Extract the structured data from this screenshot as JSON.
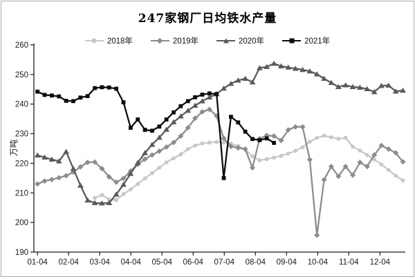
{
  "chart_data": {
    "type": "line",
    "title": "247家钢厂日均铁水产量",
    "ylabel": "万吨",
    "ylim": [
      190,
      260
    ],
    "yticks": [
      190,
      200,
      210,
      220,
      230,
      240,
      250,
      260
    ],
    "x_tick_labels": [
      "01-04",
      "02-04",
      "03-04",
      "04-04",
      "05-04",
      "06-04",
      "07-04",
      "08-04",
      "09-04",
      "10-04",
      "11-04",
      "12-04"
    ],
    "x_unit": "week-of-year, points are weekly values",
    "grid": "off",
    "legend_position": "top-center",
    "axis_color": "#1a1a1a",
    "text_color": "#1a1a1a",
    "frame_color": "#a9a9a9",
    "series": [
      {
        "name": "2018年",
        "marker": "circle",
        "color": "#c8c8c8",
        "start_week": 8,
        "values": [
          208.3,
          209.3,
          207.8,
          207.6,
          209.6,
          211.2,
          213.0,
          214.9,
          216.7,
          218.5,
          220.3,
          221.7,
          223.0,
          224.8,
          226.0,
          226.7,
          227.0,
          227.2,
          227.0,
          226.6,
          225.8,
          224.6,
          222.4,
          221.0,
          221.4,
          221.9,
          222.5,
          223.3,
          224.2,
          225.4,
          227.3,
          228.6,
          229.3,
          228.8,
          228.3,
          228.6,
          225.6,
          224.3,
          222.8,
          221.3,
          219.6,
          217.7,
          215.8,
          214.2
        ]
      },
      {
        "name": "2019年",
        "marker": "diamond",
        "color": "#8c8c8c",
        "start_week": 0,
        "values": [
          213.0,
          214.0,
          214.5,
          215.1,
          215.8,
          217.0,
          218.8,
          220.3,
          220.4,
          218.2,
          215.4,
          213.6,
          214.9,
          217.4,
          219.6,
          221.4,
          222.8,
          224.1,
          225.5,
          227.0,
          229.2,
          232.0,
          235.2,
          237.4,
          238.2,
          236.0,
          228.4,
          225.7,
          225.2,
          224.8,
          218.5,
          228.3,
          229.4,
          229.2,
          227.7,
          231.3,
          232.3,
          232.3,
          221.2,
          195.7,
          214.4,
          218.9,
          215.6,
          218.9,
          216.0,
          220.3,
          218.9,
          222.8,
          226.0,
          224.8,
          223.5,
          220.5
        ]
      },
      {
        "name": "2020年",
        "marker": "triangle",
        "color": "#5a5a5a",
        "start_week": 0,
        "values": [
          222.7,
          222.0,
          221.3,
          220.7,
          223.9,
          218.2,
          212.5,
          207.5,
          206.6,
          206.5,
          206.6,
          209.5,
          212.8,
          216.5,
          220.2,
          223.5,
          226.3,
          228.7,
          231.4,
          233.9,
          235.9,
          237.8,
          239.5,
          241.0,
          242.3,
          243.4,
          245.3,
          246.9,
          248.0,
          248.6,
          247.4,
          252.2,
          252.6,
          253.7,
          252.8,
          252.4,
          252.0,
          251.6,
          251.1,
          250.1,
          248.6,
          247.2,
          245.8,
          246.4,
          245.8,
          245.6,
          245.1,
          244.1,
          246.2,
          246.3,
          244.3,
          244.6
        ]
      },
      {
        "name": "2021年",
        "marker": "square",
        "color": "#0d0d0d",
        "start_week": 0,
        "values": [
          244.2,
          243.1,
          242.9,
          242.6,
          241.1,
          241.0,
          242.2,
          242.7,
          245.4,
          245.7,
          245.6,
          245.2,
          240.6,
          232.0,
          234.8,
          231.3,
          231.0,
          232.4,
          234.8,
          237.2,
          239.3,
          241.0,
          242.3,
          243.2,
          243.6,
          243.4,
          215.0,
          235.7,
          233.8,
          230.7,
          228.2,
          227.8,
          228.4,
          226.9
        ]
      }
    ]
  }
}
